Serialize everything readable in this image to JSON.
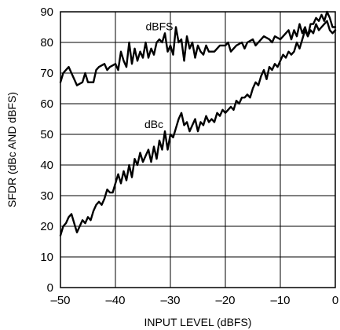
{
  "chart_data": {
    "type": "line",
    "title": "",
    "xlabel": "INPUT LEVEL (dBFS)",
    "ylabel": "SFDR (dBc AND dBFS)",
    "xlim": [
      -50,
      0
    ],
    "ylim": [
      0,
      90
    ],
    "x_ticks": [
      "–50",
      "–40",
      "–30",
      "–20",
      "–10",
      "0"
    ],
    "x_tick_values": [
      -50,
      -40,
      -30,
      -20,
      -10,
      0
    ],
    "y_ticks": [
      "0",
      "10",
      "20",
      "30",
      "40",
      "50",
      "60",
      "70",
      "80",
      "90"
    ],
    "y_tick_values": [
      0,
      10,
      20,
      30,
      40,
      50,
      60,
      70,
      80,
      90
    ],
    "grid": true,
    "series": [
      {
        "name": "dBFS",
        "x": [
          -50,
          -49.5,
          -49,
          -48.5,
          -47.5,
          -47,
          -46,
          -45.5,
          -45,
          -44,
          -43.5,
          -43,
          -42,
          -41.5,
          -41,
          -40,
          -39.5,
          -39,
          -38.5,
          -38,
          -37.5,
          -37,
          -36.5,
          -36,
          -35.5,
          -35,
          -34.5,
          -34,
          -33.5,
          -33,
          -32.5,
          -32,
          -31.5,
          -31,
          -30.5,
          -30,
          -29.5,
          -29,
          -28.5,
          -28,
          -27.5,
          -27,
          -26.5,
          -26,
          -25.5,
          -25,
          -24.5,
          -24,
          -23.5,
          -23,
          -22,
          -21,
          -20,
          -19.5,
          -19,
          -18.5,
          -18,
          -17,
          -16.5,
          -16,
          -15,
          -14.5,
          -14,
          -13,
          -12,
          -11.5,
          -11,
          -10,
          -9,
          -8.5,
          -8,
          -7.5,
          -7,
          -6.5,
          -6,
          -5.5,
          -5,
          -4.5,
          -4,
          -3.5,
          -3,
          -2.5,
          -2,
          -1.5,
          -1,
          -0.5,
          0
        ],
        "y": [
          67,
          70,
          71,
          72,
          68,
          66,
          67,
          70,
          67,
          67,
          71,
          72,
          73,
          71,
          72,
          73,
          71,
          77,
          74,
          72,
          80,
          73,
          78,
          74,
          77,
          75,
          80,
          75,
          78,
          76,
          80,
          81,
          80,
          83,
          77,
          79,
          76,
          85,
          80,
          81,
          74,
          82,
          78,
          80,
          75,
          79,
          77,
          76,
          79,
          77,
          77,
          79,
          79,
          80,
          77,
          78,
          79,
          80,
          78,
          80,
          81,
          79,
          80,
          82,
          81,
          80,
          82,
          81,
          83,
          84,
          81,
          84,
          82,
          86,
          83,
          85,
          82,
          86,
          86,
          88,
          87,
          89,
          87,
          90,
          88,
          85,
          85
        ]
      },
      {
        "name": "dBc",
        "x": [
          -50,
          -49.5,
          -49,
          -48.5,
          -48,
          -47.5,
          -47,
          -46.5,
          -46,
          -45.5,
          -45,
          -44.5,
          -44,
          -43.5,
          -43,
          -42.5,
          -42,
          -41.5,
          -41,
          -40.5,
          -40,
          -39.5,
          -39,
          -38.5,
          -38,
          -37.5,
          -37,
          -36.5,
          -36,
          -35.5,
          -35,
          -34.5,
          -34,
          -33.5,
          -33,
          -32.5,
          -32,
          -31.5,
          -31,
          -30.5,
          -30,
          -29.5,
          -29,
          -28.5,
          -28,
          -27.5,
          -27,
          -26.5,
          -26,
          -25.5,
          -25,
          -24.5,
          -24,
          -23.5,
          -23,
          -22.5,
          -22,
          -21.5,
          -21,
          -20.5,
          -20,
          -19.5,
          -19,
          -18.5,
          -18,
          -17.5,
          -17,
          -16.5,
          -16,
          -15.5,
          -15,
          -14.5,
          -14,
          -13.5,
          -13,
          -12.5,
          -12,
          -11.5,
          -11,
          -10.5,
          -10,
          -9.5,
          -9,
          -8.5,
          -8,
          -7.5,
          -7,
          -6.5,
          -6,
          -5.5,
          -5,
          -4.5,
          -4,
          -3.5,
          -3,
          -2.5,
          -2,
          -1.5,
          -1,
          -0.5,
          0
        ],
        "y": [
          17,
          20,
          21,
          23,
          24,
          21,
          18,
          20,
          22,
          21,
          23,
          22,
          25,
          27,
          28,
          27,
          29,
          32,
          31,
          31,
          34,
          37,
          34,
          38,
          35,
          40,
          36,
          42,
          40,
          44,
          41,
          43,
          45,
          41,
          46,
          42,
          48,
          45,
          51,
          45,
          50,
          49,
          52,
          55,
          57,
          53,
          54,
          51,
          53,
          55,
          51,
          54,
          53,
          56,
          54,
          55,
          54,
          57,
          56,
          58,
          57,
          58,
          59,
          58,
          61,
          60,
          62,
          62,
          63,
          62,
          65,
          67,
          66,
          69,
          71,
          68,
          72,
          71,
          73,
          72,
          74,
          76,
          75,
          77,
          76,
          77,
          80,
          78,
          81,
          84,
          82,
          84,
          83,
          86,
          84,
          85,
          86,
          87,
          84,
          83,
          84
        ]
      }
    ],
    "annotations": [
      {
        "text": "dBFS",
        "x": -32,
        "y": 84
      },
      {
        "text": "dBc",
        "x": -33,
        "y": 52
      }
    ]
  }
}
